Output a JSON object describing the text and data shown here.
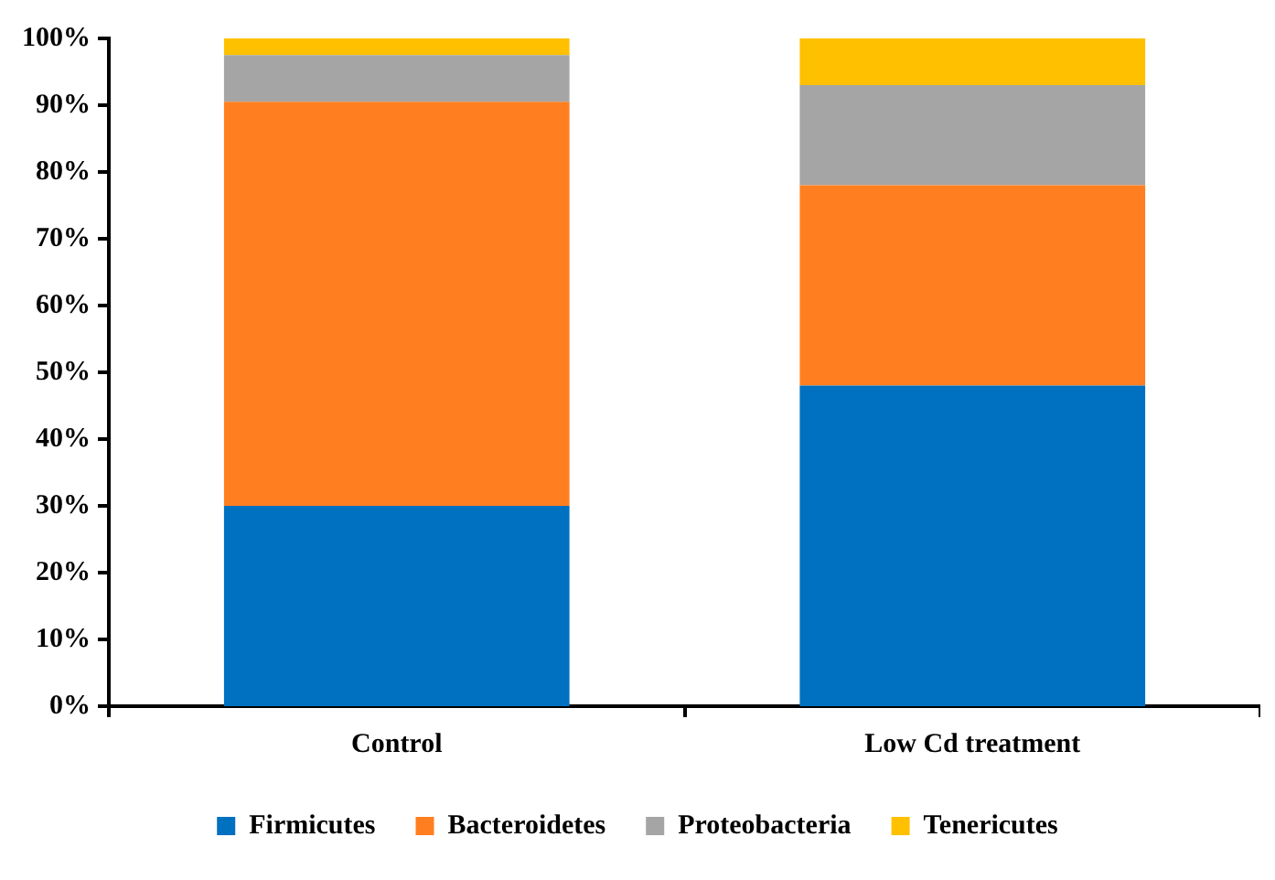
{
  "chart_data": {
    "type": "bar",
    "stacked": true,
    "categories": [
      "Control",
      "Low Cd treatment"
    ],
    "series": [
      {
        "name": "Firmicutes",
        "color": "#0070c0",
        "values": [
          30,
          48
        ]
      },
      {
        "name": "Bacteroidetes",
        "color": "#ff7f20",
        "values": [
          60.5,
          30
        ]
      },
      {
        "name": "Proteobacteria",
        "color": "#a5a5a5",
        "values": [
          7,
          15
        ]
      },
      {
        "name": "Tenericutes",
        "color": "#ffc000",
        "values": [
          2.5,
          7
        ]
      }
    ],
    "ylim": [
      0,
      100
    ],
    "yticks": [
      {
        "value": 0,
        "label": "0%"
      },
      {
        "value": 10,
        "label": "10%"
      },
      {
        "value": 20,
        "label": "20%"
      },
      {
        "value": 30,
        "label": "30%"
      },
      {
        "value": 40,
        "label": "40%"
      },
      {
        "value": 50,
        "label": "50%"
      },
      {
        "value": 60,
        "label": "60%"
      },
      {
        "value": 70,
        "label": "70%"
      },
      {
        "value": 80,
        "label": "80%"
      },
      {
        "value": 90,
        "label": "90%"
      },
      {
        "value": 100,
        "label": "100%"
      }
    ],
    "grid": false,
    "legend": "bottom"
  }
}
